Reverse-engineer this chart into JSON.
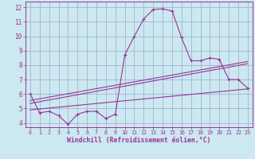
{
  "xlabel": "Windchill (Refroidissement éolien,°C)",
  "bg_color": "#cce8f0",
  "line_color": "#993399",
  "grid_color": "#99aacc",
  "axis_color": "#993399",
  "xlim": [
    -0.5,
    23.5
  ],
  "ylim": [
    3.7,
    12.4
  ],
  "yticks": [
    4,
    5,
    6,
    7,
    8,
    9,
    10,
    11,
    12
  ],
  "xticks": [
    0,
    1,
    2,
    3,
    4,
    5,
    6,
    7,
    8,
    9,
    10,
    11,
    12,
    13,
    14,
    15,
    16,
    17,
    18,
    19,
    20,
    21,
    22,
    23
  ],
  "main_x": [
    0,
    1,
    2,
    3,
    4,
    5,
    6,
    7,
    8,
    9,
    10,
    11,
    12,
    13,
    14,
    15,
    16,
    17,
    18,
    19,
    20,
    21,
    22,
    23
  ],
  "main_y": [
    6.0,
    4.7,
    4.8,
    4.5,
    3.9,
    4.6,
    4.8,
    4.8,
    4.3,
    4.6,
    8.7,
    10.0,
    11.2,
    11.85,
    11.9,
    11.75,
    9.9,
    8.3,
    8.3,
    8.5,
    8.4,
    7.0,
    7.0,
    6.4
  ],
  "line2_x": [
    0,
    23
  ],
  "line2_y": [
    5.55,
    8.25
  ],
  "line3_x": [
    0,
    23
  ],
  "line3_y": [
    5.35,
    8.1
  ],
  "line4_x": [
    0,
    23
  ],
  "line4_y": [
    4.9,
    6.35
  ]
}
